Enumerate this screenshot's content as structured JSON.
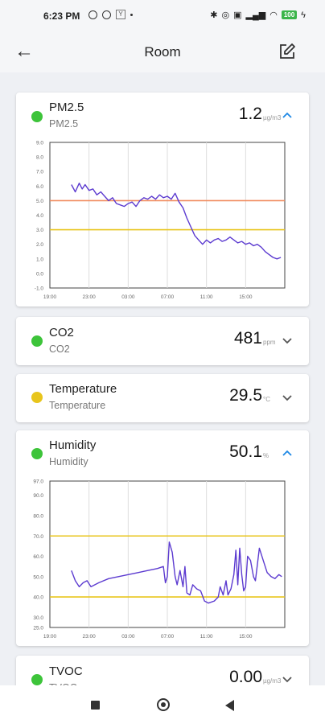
{
  "status": {
    "time": "6:23 PM",
    "battery": "100"
  },
  "header": {
    "title": "Room",
    "back_icon": "arrow-left-icon",
    "edit_icon": "edit-icon"
  },
  "colors": {
    "green": "#3dc43a",
    "yellow": "#e8c51c",
    "accent": "#1e88e5",
    "line": "#5c3bd0",
    "upper_limit": "#f08a5d",
    "lower_limit": "#e8c51c"
  },
  "sensors": [
    {
      "name": "PM2.5",
      "subtitle": "PM2.5",
      "value": "1.2",
      "unit": "µg/m3",
      "status": "green",
      "expanded": true
    },
    {
      "name": "CO2",
      "subtitle": "CO2",
      "value": "481",
      "unit": "ppm",
      "status": "green",
      "expanded": false
    },
    {
      "name": "Temperature",
      "subtitle": "Temperature",
      "value": "29.5",
      "unit": "°C",
      "status": "yellow",
      "expanded": false
    },
    {
      "name": "Humidity",
      "subtitle": "Humidity",
      "value": "50.1",
      "unit": "%",
      "status": "green",
      "expanded": true
    },
    {
      "name": "TVOC",
      "subtitle": "TVOC",
      "value": "0.00",
      "unit": "µg/m3",
      "status": "green",
      "expanded": false
    }
  ],
  "chart_data": [
    {
      "type": "line",
      "x_ticks": [
        "19:00",
        "23:00",
        "03:00",
        "07:00",
        "11:00",
        "15:00"
      ],
      "y_ticks": [
        "-1.0",
        "0.0",
        "1.0",
        "2.0",
        "3.0",
        "4.0",
        "5.0",
        "6.0",
        "7.0",
        "8.0",
        "9.0"
      ],
      "ylim": [
        -1.0,
        9.0
      ],
      "xlim_hours": [
        0,
        24
      ],
      "grid": true,
      "thresholds": [
        {
          "value": 5.0,
          "color": "#f08a5d"
        },
        {
          "value": 3.0,
          "color": "#e8c51c"
        }
      ],
      "series": [
        {
          "points": [
            [
              2.2,
              6.1
            ],
            [
              2.6,
              5.6
            ],
            [
              3.0,
              6.2
            ],
            [
              3.3,
              5.8
            ],
            [
              3.6,
              6.1
            ],
            [
              4.0,
              5.7
            ],
            [
              4.4,
              5.8
            ],
            [
              4.8,
              5.4
            ],
            [
              5.2,
              5.6
            ],
            [
              5.6,
              5.3
            ],
            [
              6.0,
              5.0
            ],
            [
              6.4,
              5.2
            ],
            [
              6.8,
              4.8
            ],
            [
              7.2,
              4.7
            ],
            [
              7.6,
              4.6
            ],
            [
              8.0,
              4.8
            ],
            [
              8.4,
              4.9
            ],
            [
              8.8,
              4.6
            ],
            [
              9.2,
              5.0
            ],
            [
              9.6,
              5.2
            ],
            [
              10.0,
              5.1
            ],
            [
              10.4,
              5.3
            ],
            [
              10.8,
              5.1
            ],
            [
              11.2,
              5.4
            ],
            [
              11.6,
              5.2
            ],
            [
              12.0,
              5.3
            ],
            [
              12.4,
              5.1
            ],
            [
              12.8,
              5.5
            ],
            [
              13.2,
              4.9
            ],
            [
              13.6,
              4.5
            ],
            [
              14.0,
              3.8
            ],
            [
              14.4,
              3.2
            ],
            [
              14.8,
              2.6
            ],
            [
              15.2,
              2.3
            ],
            [
              15.6,
              2.0
            ],
            [
              16.0,
              2.3
            ],
            [
              16.4,
              2.1
            ],
            [
              16.8,
              2.3
            ],
            [
              17.2,
              2.4
            ],
            [
              17.6,
              2.2
            ],
            [
              18.0,
              2.3
            ],
            [
              18.4,
              2.5
            ],
            [
              18.8,
              2.3
            ],
            [
              19.2,
              2.1
            ],
            [
              19.6,
              2.2
            ],
            [
              20.0,
              2.0
            ],
            [
              20.4,
              2.1
            ],
            [
              20.8,
              1.9
            ],
            [
              21.2,
              2.0
            ],
            [
              21.6,
              1.8
            ],
            [
              22.0,
              1.5
            ],
            [
              22.4,
              1.3
            ],
            [
              22.8,
              1.1
            ],
            [
              23.2,
              1.0
            ],
            [
              23.6,
              1.1
            ]
          ]
        }
      ]
    },
    {
      "type": "line",
      "x_ticks": [
        "19:00",
        "23:00",
        "03:00",
        "07:00",
        "11:00",
        "15:00"
      ],
      "y_ticks": [
        "25.0",
        "30.0",
        "40.0",
        "50.0",
        "60.0",
        "70.0",
        "80.0",
        "90.0",
        "97.0"
      ],
      "ylim": [
        25.0,
        97.0
      ],
      "xlim_hours": [
        0,
        24
      ],
      "grid": true,
      "thresholds": [
        {
          "value": 70.0,
          "color": "#e8c51c"
        },
        {
          "value": 40.0,
          "color": "#e8c51c"
        }
      ],
      "series": [
        {
          "points": [
            [
              2.2,
              53
            ],
            [
              2.6,
              48
            ],
            [
              3.0,
              45
            ],
            [
              3.4,
              47
            ],
            [
              3.8,
              48
            ],
            [
              4.2,
              45
            ],
            [
              5.0,
              47
            ],
            [
              6.0,
              49
            ],
            [
              7.0,
              50
            ],
            [
              8.0,
              51
            ],
            [
              9.0,
              52
            ],
            [
              10.0,
              53
            ],
            [
              11.0,
              54
            ],
            [
              11.6,
              55
            ],
            [
              11.8,
              47
            ],
            [
              12.0,
              50
            ],
            [
              12.2,
              67
            ],
            [
              12.5,
              62
            ],
            [
              12.8,
              50
            ],
            [
              13.0,
              46
            ],
            [
              13.3,
              53
            ],
            [
              13.6,
              45
            ],
            [
              13.8,
              55
            ],
            [
              14.0,
              42
            ],
            [
              14.3,
              41
            ],
            [
              14.6,
              46
            ],
            [
              15.0,
              44
            ],
            [
              15.4,
              43
            ],
            [
              15.8,
              38
            ],
            [
              16.2,
              37
            ],
            [
              16.8,
              38
            ],
            [
              17.2,
              40
            ],
            [
              17.4,
              45
            ],
            [
              17.7,
              41
            ],
            [
              18.0,
              48
            ],
            [
              18.2,
              41
            ],
            [
              18.5,
              44
            ],
            [
              18.8,
              51
            ],
            [
              19.0,
              63
            ],
            [
              19.2,
              46
            ],
            [
              19.4,
              64
            ],
            [
              19.6,
              51
            ],
            [
              19.8,
              43
            ],
            [
              20.0,
              45
            ],
            [
              20.2,
              60
            ],
            [
              20.5,
              58
            ],
            [
              20.8,
              50
            ],
            [
              21.0,
              48
            ],
            [
              21.4,
              64
            ],
            [
              21.8,
              58
            ],
            [
              22.2,
              52
            ],
            [
              22.6,
              50
            ],
            [
              23.0,
              49
            ],
            [
              23.4,
              51
            ],
            [
              23.7,
              50
            ]
          ]
        }
      ]
    }
  ]
}
